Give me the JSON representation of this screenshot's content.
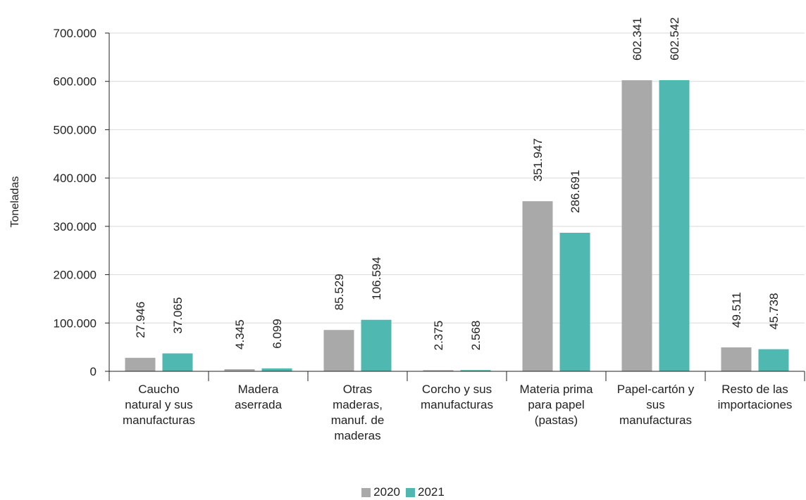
{
  "chart_data": {
    "type": "bar",
    "ylabel": "Toneladas",
    "ylim": [
      0,
      700000
    ],
    "yticks": [
      0,
      100000,
      200000,
      300000,
      400000,
      500000,
      600000,
      700000
    ],
    "ytick_labels": [
      "0",
      "100.000",
      "200.000",
      "300.000",
      "400.000",
      "500.000",
      "600.000",
      "700.000"
    ],
    "grid": true,
    "legend_position": "bottom",
    "categories": [
      [
        "Caucho",
        "natural y sus",
        "manufacturas"
      ],
      [
        "Madera",
        "aserrada"
      ],
      [
        "Otras",
        "maderas,",
        "manuf. de",
        "maderas"
      ],
      [
        "Corcho y sus",
        "manufacturas"
      ],
      [
        "Materia prima",
        "para papel",
        "(pastas)"
      ],
      [
        "Papel-cartón y",
        "sus",
        "manufacturas"
      ],
      [
        "Resto de las",
        "importaciones"
      ]
    ],
    "series": [
      {
        "name": "2020",
        "color": "#a9a9a9",
        "values": [
          27946,
          4345,
          85529,
          2375,
          351947,
          602341,
          49511
        ],
        "labels": [
          "27.946",
          "4.345",
          "85.529",
          "2.375",
          "351.947",
          "602.341",
          "49.511"
        ]
      },
      {
        "name": "2021",
        "color": "#4fb8b0",
        "values": [
          37065,
          6099,
          106594,
          2568,
          286691,
          602542,
          45738
        ],
        "labels": [
          "37.065",
          "6.099",
          "106.594",
          "2.568",
          "286.691",
          "602.542",
          "45.738"
        ]
      }
    ]
  }
}
